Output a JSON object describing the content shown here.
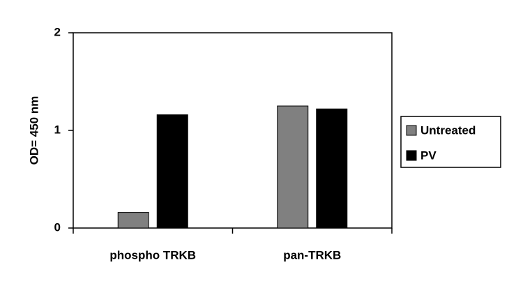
{
  "chart_data": {
    "type": "bar",
    "y_label": "OD= 450 nm",
    "categories": [
      "phospho TRKB",
      "pan-TRKB"
    ],
    "series": [
      {
        "name": "Untreated",
        "color": "#808080",
        "values": [
          0.16,
          1.25
        ]
      },
      {
        "name": "PV",
        "color": "#000000",
        "values": [
          1.16,
          1.22
        ]
      }
    ],
    "ylim": [
      0,
      2
    ],
    "yticks": [
      0,
      1,
      2
    ],
    "grid": false,
    "legend": "right"
  }
}
